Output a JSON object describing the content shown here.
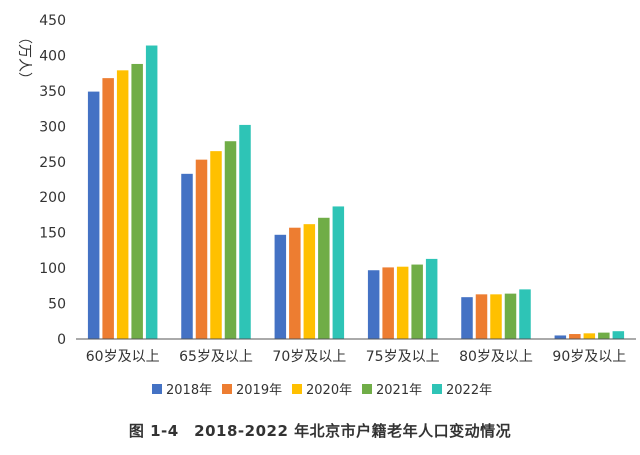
{
  "chart_data": {
    "type": "bar",
    "title": "",
    "xlabel": "",
    "ylabel": "（万人）",
    "ylim": [
      0,
      450
    ],
    "yticks": [
      0,
      50,
      100,
      150,
      200,
      250,
      300,
      350,
      400,
      450
    ],
    "grid": false,
    "legend_position": "bottom",
    "categories": [
      "60岁及以上",
      "65岁及以上",
      "70岁及以上",
      "75岁及以上",
      "80岁及以上",
      "90岁及以上"
    ],
    "series": [
      {
        "name": "2018年",
        "color": "#4472C4",
        "values": [
          349,
          233,
          147,
          97,
          59,
          5
        ]
      },
      {
        "name": "2019年",
        "color": "#ED7D31",
        "values": [
          368,
          253,
          157,
          101,
          63,
          7
        ]
      },
      {
        "name": "2020年",
        "color": "#FFC000",
        "values": [
          379,
          265,
          162,
          102,
          63,
          8
        ]
      },
      {
        "name": "2021年",
        "color": "#70AD47",
        "values": [
          388,
          279,
          171,
          105,
          64,
          9
        ]
      },
      {
        "name": "2022年",
        "color": "#2EC4B6",
        "values": [
          414,
          302,
          187,
          113,
          70,
          11
        ]
      }
    ]
  },
  "caption": "图 1-4　2018-2022 年北京市户籍老年人口变动情况"
}
